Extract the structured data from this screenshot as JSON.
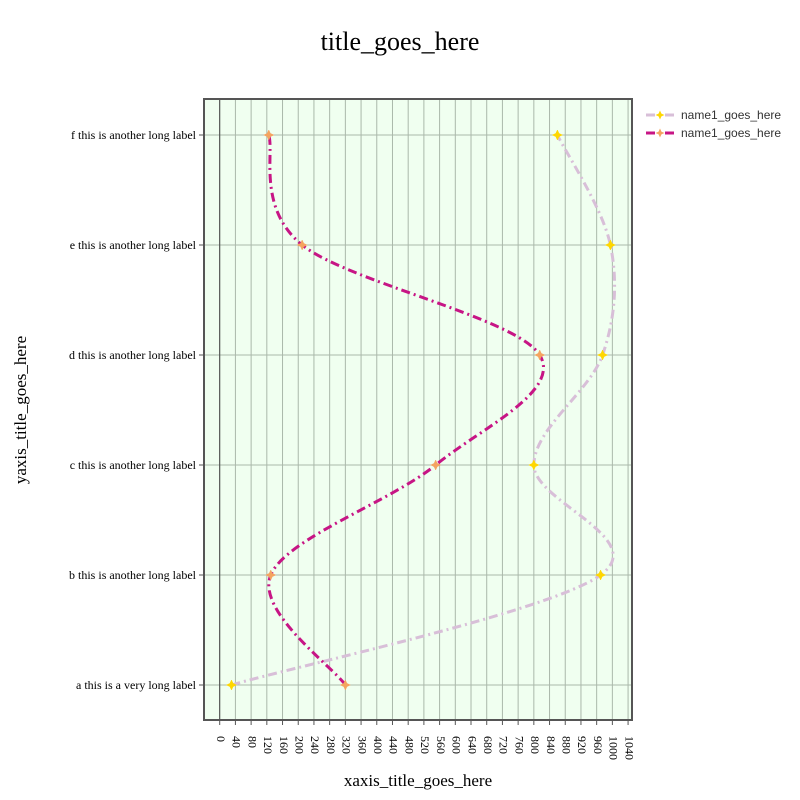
{
  "chart_data": {
    "type": "line",
    "title": "title_goes_here",
    "xlabel": "xaxis_title_goes_here",
    "ylabel": "yaxis_title_goes_here",
    "categories": [
      "a this is a very long label",
      "b this is another long label",
      "c this is another long label",
      "d this is another long label",
      "e this is another long label",
      "f this is another long label"
    ],
    "x_ticks": [
      0,
      40,
      80,
      120,
      160,
      200,
      240,
      280,
      320,
      360,
      400,
      440,
      480,
      520,
      560,
      600,
      640,
      680,
      720,
      760,
      800,
      840,
      880,
      920,
      960,
      1000,
      1040
    ],
    "xlim": [
      -40,
      1050
    ],
    "grid": true,
    "legend_position": "top-right",
    "plot_background": "#f0fff0",
    "series": [
      {
        "name": "name1_goes_here",
        "color": "#d8bfd8",
        "marker_color": "#ffd700",
        "line_style": "dash-dot",
        "values": [
          30,
          970,
          800,
          975,
          995,
          860
        ]
      },
      {
        "name": "name1_goes_here",
        "color": "#c71585",
        "marker_color": "#f4a460",
        "line_style": "dash-dot",
        "values": [
          320,
          130,
          550,
          815,
          210,
          125
        ]
      }
    ]
  }
}
